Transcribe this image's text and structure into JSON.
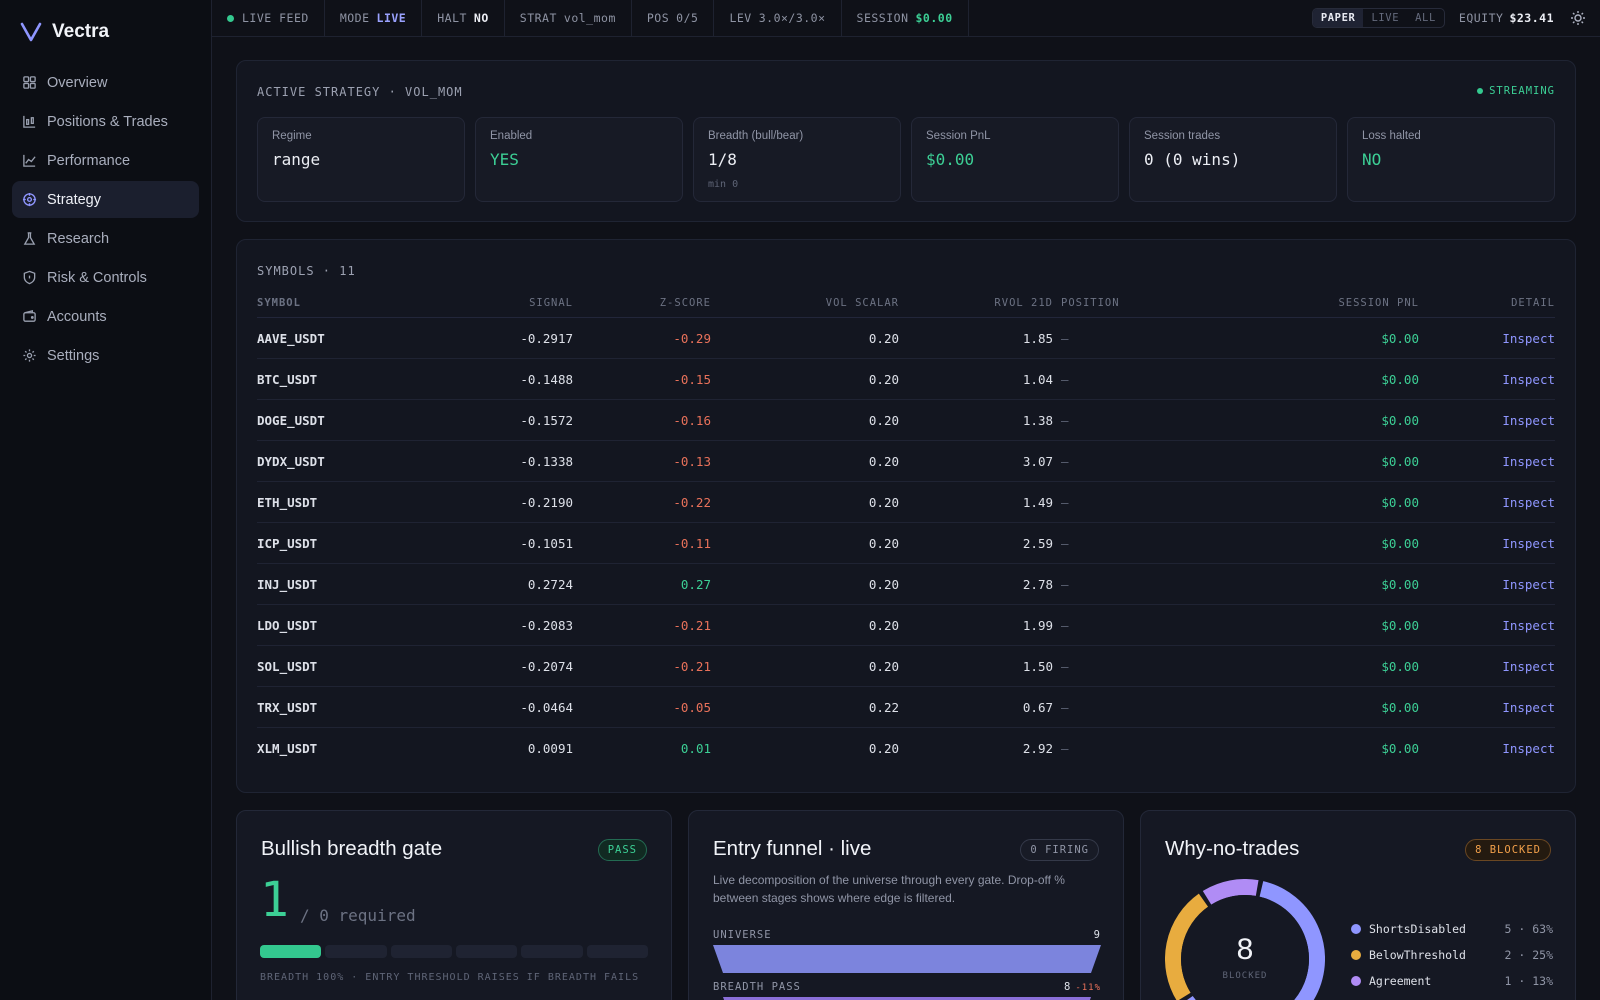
{
  "brand": {
    "name": "Vectra"
  },
  "nav": [
    {
      "label": "Overview",
      "icon": "grid-icon"
    },
    {
      "label": "Positions & Trades",
      "icon": "candles-icon"
    },
    {
      "label": "Performance",
      "icon": "line-chart-icon"
    },
    {
      "label": "Strategy",
      "icon": "target-icon",
      "active": true
    },
    {
      "label": "Research",
      "icon": "flask-icon"
    },
    {
      "label": "Risk & Controls",
      "icon": "shield-icon"
    },
    {
      "label": "Accounts",
      "icon": "wallet-icon"
    },
    {
      "label": "Settings",
      "icon": "gear-icon"
    }
  ],
  "topbar": {
    "feed": "LIVE FEED",
    "mode_label": "MODE",
    "mode_value": "LIVE",
    "halt_label": "HALT",
    "halt_value": "NO",
    "strat_label": "STRAT",
    "strat_value": "vol_mom",
    "pos_label": "POS",
    "pos_value": "0/5",
    "lev_label": "LEV",
    "lev_value": "3.0×/3.0×",
    "session_label": "SESSION",
    "session_value": "$0.00",
    "account_modes": [
      "PAPER",
      "LIVE",
      "ALL"
    ],
    "account_mode_selected": "PAPER",
    "equity_label": "EQUITY",
    "equity_value": "$23.41"
  },
  "strategy": {
    "title": "ACTIVE STRATEGY · VOL_MOM",
    "status": "STREAMING",
    "stats": [
      {
        "label": "Regime",
        "value": "range",
        "color": "#eceef4"
      },
      {
        "label": "Enabled",
        "value": "YES",
        "color": "#3ccf95"
      },
      {
        "label": "Breadth (bull/bear)",
        "value": "1/8",
        "sub": "min 0",
        "color": "#eceef4"
      },
      {
        "label": "Session PnL",
        "value": "$0.00",
        "color": "#3ccf95"
      },
      {
        "label": "Session trades",
        "value": "0 (0 wins)",
        "color": "#eceef4"
      },
      {
        "label": "Loss halted",
        "value": "NO",
        "color": "#3ccf95"
      }
    ]
  },
  "symbols": {
    "title": "SYMBOLS · 11",
    "columns": [
      "SYMBOL",
      "SIGNAL",
      "Z-SCORE",
      "VOL SCALAR",
      "RVOL 21D",
      "POSITION",
      "SESSION PNL",
      "DETAIL"
    ],
    "rows": [
      {
        "symbol": "AAVE_USDT",
        "signal": "-0.2917",
        "z": "-0.29",
        "vol": "0.20",
        "rvol": "1.85",
        "position": "—",
        "pnl": "$0.00",
        "detail": "Inspect"
      },
      {
        "symbol": "BTC_USDT",
        "signal": "-0.1488",
        "z": "-0.15",
        "vol": "0.20",
        "rvol": "1.04",
        "position": "—",
        "pnl": "$0.00",
        "detail": "Inspect"
      },
      {
        "symbol": "DOGE_USDT",
        "signal": "-0.1572",
        "z": "-0.16",
        "vol": "0.20",
        "rvol": "1.38",
        "position": "—",
        "pnl": "$0.00",
        "detail": "Inspect"
      },
      {
        "symbol": "DYDX_USDT",
        "signal": "-0.1338",
        "z": "-0.13",
        "vol": "0.20",
        "rvol": "3.07",
        "position": "—",
        "pnl": "$0.00",
        "detail": "Inspect"
      },
      {
        "symbol": "ETH_USDT",
        "signal": "-0.2190",
        "z": "-0.22",
        "vol": "0.20",
        "rvol": "1.49",
        "position": "—",
        "pnl": "$0.00",
        "detail": "Inspect"
      },
      {
        "symbol": "ICP_USDT",
        "signal": "-0.1051",
        "z": "-0.11",
        "vol": "0.20",
        "rvol": "2.59",
        "position": "—",
        "pnl": "$0.00",
        "detail": "Inspect"
      },
      {
        "symbol": "INJ_USDT",
        "signal": "0.2724",
        "z": "0.27",
        "vol": "0.20",
        "rvol": "2.78",
        "position": "—",
        "pnl": "$0.00",
        "detail": "Inspect"
      },
      {
        "symbol": "LDO_USDT",
        "signal": "-0.2083",
        "z": "-0.21",
        "vol": "0.20",
        "rvol": "1.99",
        "position": "—",
        "pnl": "$0.00",
        "detail": "Inspect"
      },
      {
        "symbol": "SOL_USDT",
        "signal": "-0.2074",
        "z": "-0.21",
        "vol": "0.20",
        "rvol": "1.50",
        "position": "—",
        "pnl": "$0.00",
        "detail": "Inspect"
      },
      {
        "symbol": "TRX_USDT",
        "signal": "-0.0464",
        "z": "-0.05",
        "vol": "0.22",
        "rvol": "0.67",
        "position": "—",
        "pnl": "$0.00",
        "detail": "Inspect"
      },
      {
        "symbol": "XLM_USDT",
        "signal": "0.0091",
        "z": "0.01",
        "vol": "0.20",
        "rvol": "2.92",
        "position": "—",
        "pnl": "$0.00",
        "detail": "Inspect"
      }
    ]
  },
  "breadth_gate": {
    "title": "Bullish breadth gate",
    "badge": "PASS",
    "value": "1",
    "required": "/ 0 required",
    "segments_total": 6,
    "segments_filled": 1,
    "note": "BREADTH 100% · ENTRY THRESHOLD RAISES IF BREADTH FAILS"
  },
  "funnel": {
    "title": "Entry funnel · live",
    "badge": "0 FIRING",
    "description": "Live decomposition of the universe through every gate. Drop-off % between stages shows where edge is filtered.",
    "stages": [
      {
        "label": "UNIVERSE",
        "value": 9,
        "delta": ""
      },
      {
        "label": "BREADTH PASS",
        "value": 8,
        "delta": "-11%"
      }
    ]
  },
  "why_no_trades": {
    "title": "Why-no-trades",
    "badge": "8 BLOCKED",
    "total": "8",
    "total_label": "BLOCKED",
    "reasons": [
      {
        "name": "ShortsDisabled",
        "count": 5,
        "stat": "5 · 63%",
        "color": "#8f96ff"
      },
      {
        "name": "BelowThreshold",
        "count": 2,
        "stat": "2 · 25%",
        "color": "#e8ac3f"
      },
      {
        "name": "Agreement",
        "count": 1,
        "stat": "1 · 13%",
        "color": "#b08cf5"
      }
    ]
  }
}
